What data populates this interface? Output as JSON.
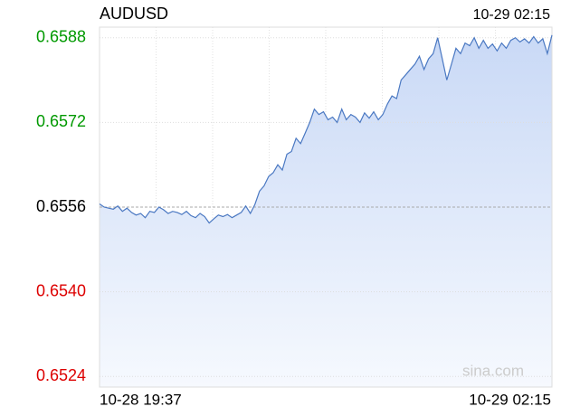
{
  "chart_data": {
    "type": "line",
    "title": "AUDUSD",
    "last_time": "10-29 02:15",
    "x_labels": [
      "10-28 19:37",
      "10-29 02:15"
    ],
    "watermark": "sina.com",
    "prev_close": 0.6556,
    "up_color": "#009900",
    "down_color": "#dd0000",
    "color": "#4a78c2",
    "ylim": [
      0.6522,
      0.659
    ],
    "yticks": [
      {
        "value": 0.6588,
        "label": "0.6588"
      },
      {
        "value": 0.6572,
        "label": "0.6572"
      },
      {
        "value": 0.6556,
        "label": "0.6556"
      },
      {
        "value": 0.654,
        "label": "0.6540"
      },
      {
        "value": 0.6524,
        "label": "0.6524"
      }
    ],
    "grid": true,
    "values": [
      0.65566,
      0.6556,
      0.65558,
      0.65556,
      0.65562,
      0.65552,
      0.65558,
      0.6555,
      0.65545,
      0.65548,
      0.6554,
      0.65552,
      0.6555,
      0.6556,
      0.65555,
      0.65548,
      0.65552,
      0.6555,
      0.65546,
      0.65552,
      0.65544,
      0.6554,
      0.65548,
      0.65542,
      0.6553,
      0.65538,
      0.65545,
      0.65542,
      0.65546,
      0.6554,
      0.65545,
      0.6555,
      0.65562,
      0.65548,
      0.65565,
      0.6559,
      0.656,
      0.65618,
      0.65625,
      0.6564,
      0.6563,
      0.6566,
      0.65665,
      0.6569,
      0.6568,
      0.657,
      0.6572,
      0.65745,
      0.65735,
      0.6574,
      0.65725,
      0.6573,
      0.6572,
      0.65745,
      0.65725,
      0.65735,
      0.6573,
      0.6572,
      0.65738,
      0.65728,
      0.6574,
      0.65725,
      0.65735,
      0.65755,
      0.6577,
      0.65765,
      0.658,
      0.6581,
      0.6582,
      0.6583,
      0.65845,
      0.6582,
      0.6584,
      0.6585,
      0.6588,
      0.6584,
      0.658,
      0.6583,
      0.6586,
      0.6585,
      0.6587,
      0.65865,
      0.6588,
      0.6586,
      0.65875,
      0.6586,
      0.65868,
      0.65855,
      0.6587,
      0.6586,
      0.65875,
      0.6588,
      0.65872,
      0.65878,
      0.6587,
      0.65882,
      0.6587,
      0.65878,
      0.6585,
      0.65885
    ]
  }
}
